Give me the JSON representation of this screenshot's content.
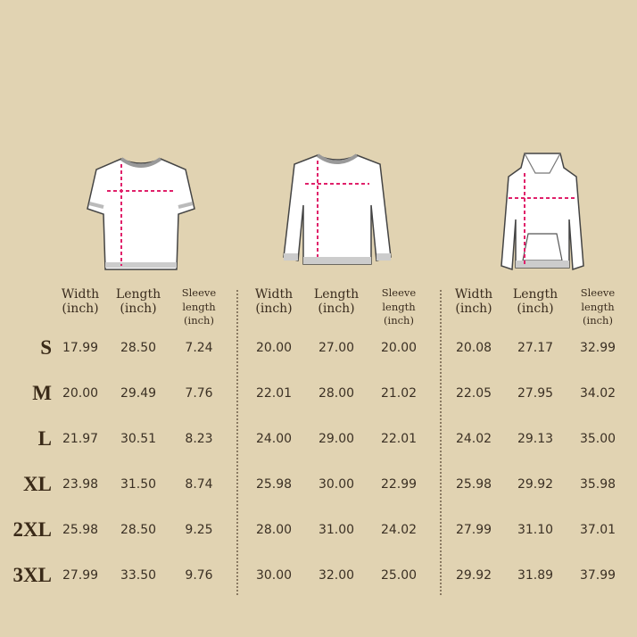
{
  "colors": {
    "background": "#e1d3b2",
    "measure_line": "#e0206a",
    "text": "#3a2c1e"
  },
  "garments": [
    {
      "icon": "tshirt-icon",
      "headers": [
        "Width (inch)",
        "Length (inch)",
        "Sleeve length (inch)"
      ],
      "header_lines": [
        [
          "Width",
          "(inch)"
        ],
        [
          "Length",
          "(inch)"
        ],
        [
          "Sleeve",
          "length",
          "(inch)"
        ]
      ]
    },
    {
      "icon": "sweatshirt-icon",
      "header_lines": [
        [
          "Width",
          "(inch)"
        ],
        [
          "Length",
          "(inch)"
        ],
        [
          "Sleeve",
          "length",
          "(inch)"
        ]
      ]
    },
    {
      "icon": "hoodie-icon",
      "header_lines": [
        [
          "Width",
          "(inch)"
        ],
        [
          "Length",
          "(inch)"
        ],
        [
          "Sleeve",
          "length",
          "(inch)"
        ]
      ]
    }
  ],
  "sizes": [
    "S",
    "M",
    "L",
    "XL",
    "2XL",
    "3XL"
  ],
  "rows": [
    [
      "17.99",
      "28.50",
      "7.24",
      "20.00",
      "27.00",
      "20.00",
      "20.08",
      "27.17",
      "32.99"
    ],
    [
      "20.00",
      "29.49",
      "7.76",
      "22.01",
      "28.00",
      "21.02",
      "22.05",
      "27.95",
      "34.02"
    ],
    [
      "21.97",
      "30.51",
      "8.23",
      "24.00",
      "29.00",
      "22.01",
      "24.02",
      "29.13",
      "35.00"
    ],
    [
      "23.98",
      "31.50",
      "8.74",
      "25.98",
      "30.00",
      "22.99",
      "25.98",
      "29.92",
      "35.98"
    ],
    [
      "25.98",
      "28.50",
      "9.25",
      "28.00",
      "31.00",
      "24.02",
      "27.99",
      "31.10",
      "37.01"
    ],
    [
      "27.99",
      "33.50",
      "9.76",
      "30.00",
      "32.00",
      "25.00",
      "29.92",
      "31.89",
      "37.99"
    ]
  ]
}
